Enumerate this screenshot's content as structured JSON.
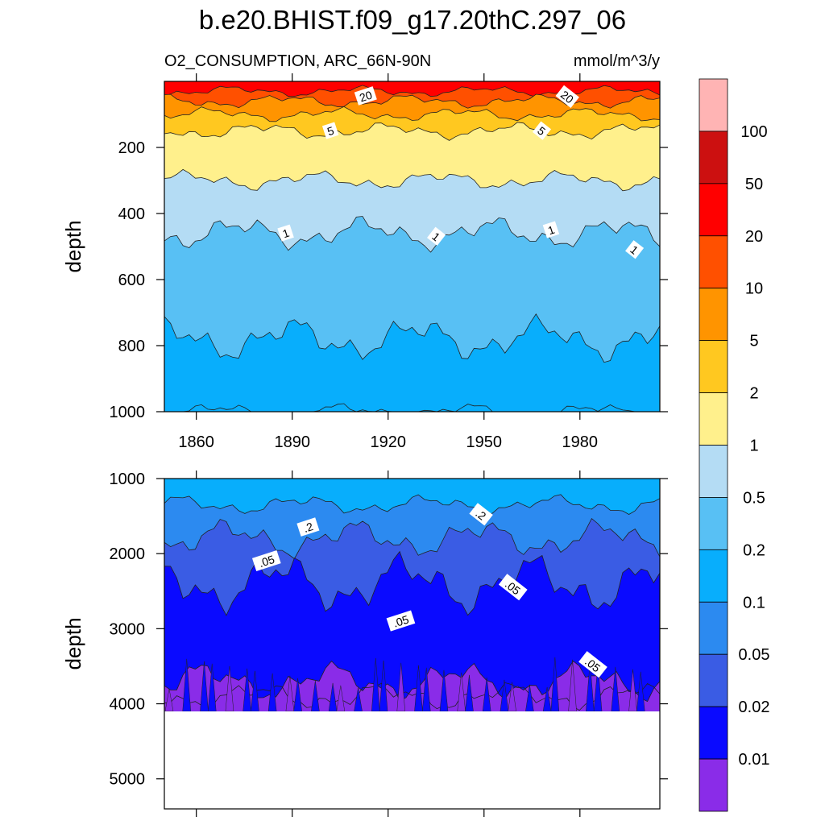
{
  "figure": {
    "title": "b.e20.BHIST.f09_g17.20thC.297_06",
    "left_string": "O2_CONSUMPTION, ARC_66N-90N",
    "right_string": "mmol/m^3/y"
  },
  "chart_data": [
    {
      "type": "filled-contour",
      "panel": "upper",
      "ylabel": "depth",
      "x_range": [
        1850,
        2005
      ],
      "x_ticks": [
        "1860",
        "1890",
        "1920",
        "1950",
        "1980"
      ],
      "y_range": [
        1000,
        0
      ],
      "y_ticks": [
        "200",
        "400",
        "600",
        "800",
        "1000"
      ],
      "bands": [
        {
          "level": 50,
          "approx_depth": 30
        },
        {
          "level": 20,
          "approx_depth": 60
        },
        {
          "level": 10,
          "approx_depth": 100
        },
        {
          "level": 5,
          "approx_depth": 150
        },
        {
          "level": 2,
          "approx_depth": 300
        },
        {
          "level": 1,
          "approx_depth": 460
        },
        {
          "level": 0.5,
          "approx_depth": 780
        },
        {
          "level": 0.2,
          "approx_depth": 1000
        }
      ],
      "contour_labels": [
        {
          "text": "20",
          "year": 1913,
          "depth": 45
        },
        {
          "text": "20",
          "year": 1976,
          "depth": 47
        },
        {
          "text": "5",
          "year": 1902,
          "depth": 150
        },
        {
          "text": "5",
          "year": 1968,
          "depth": 150
        },
        {
          "text": "1",
          "year": 1888,
          "depth": 460
        },
        {
          "text": "1",
          "year": 1935,
          "depth": 470
        },
        {
          "text": "1",
          "year": 1971,
          "depth": 450
        },
        {
          "text": "1",
          "year": 1997,
          "depth": 510
        }
      ]
    },
    {
      "type": "filled-contour",
      "panel": "lower",
      "ylabel": "depth",
      "x_range": [
        1850,
        2005
      ],
      "y_range": [
        5400,
        1000
      ],
      "y_ticks": [
        "1000",
        "2000",
        "3000",
        "4000",
        "5000"
      ],
      "ocean_floor_depth": 4100,
      "bands": [
        {
          "level": 0.2,
          "approx_depth": 1350
        },
        {
          "level": 0.1,
          "approx_depth": 1800
        },
        {
          "level": 0.05,
          "approx_depth": 2400
        },
        {
          "level": 0.02,
          "approx_depth": 3700
        },
        {
          "level": 0.01,
          "approx_depth": 3900
        }
      ],
      "contour_labels": [
        {
          "text": ".2",
          "year": 1895,
          "depth": 1650
        },
        {
          "text": ".2",
          "year": 1949,
          "depth": 1480
        },
        {
          "text": ".05",
          "year": 1882,
          "depth": 2100
        },
        {
          "text": ".05",
          "year": 1959,
          "depth": 2450
        },
        {
          "text": ".05",
          "year": 1924,
          "depth": 2900
        },
        {
          "text": ".05",
          "year": 1984,
          "depth": 3480
        }
      ]
    }
  ],
  "colorbar": {
    "levels": [
      "100",
      "50",
      "20",
      "10",
      "5",
      "2",
      "1",
      "0.5",
      "0.2",
      "0.1",
      "0.05",
      "0.02",
      "0.01"
    ],
    "colors": [
      "#FFB4B4",
      "#CC1010",
      "#FF0000",
      "#FF5000",
      "#FF9400",
      "#FFC820",
      "#FFF08C",
      "#B4DCF4",
      "#58C0F4",
      "#08AEFC",
      "#2C8AF0",
      "#3A5CE4",
      "#0A0AFF",
      "#8A2CE8"
    ]
  }
}
